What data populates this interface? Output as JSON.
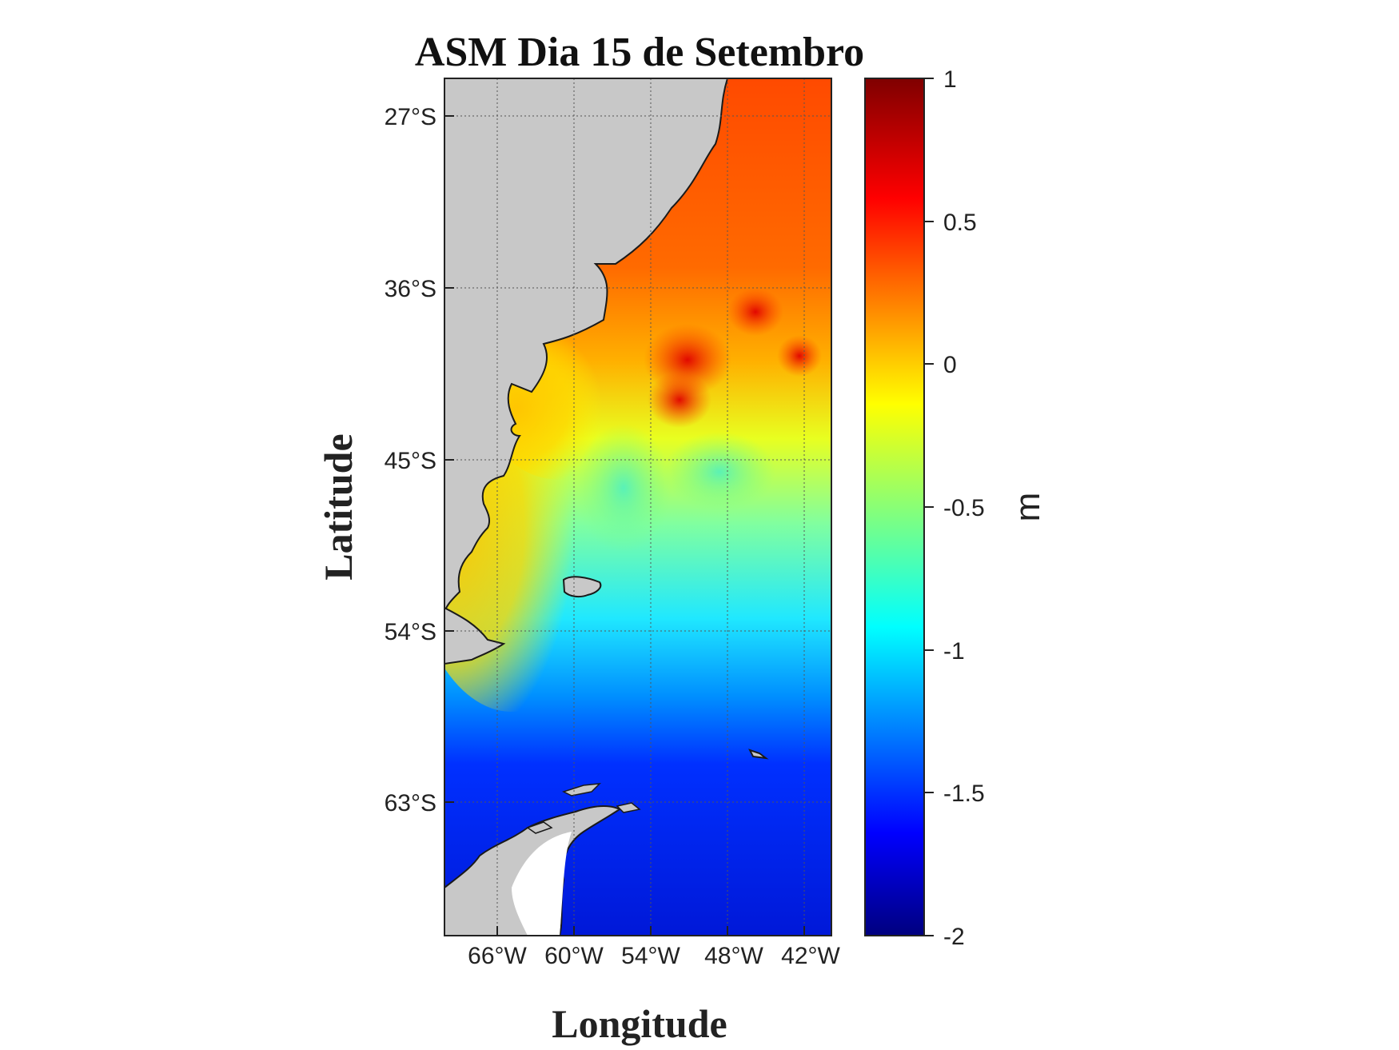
{
  "title": "ASM Dia 15 de Setembro",
  "xlabel": "Longitude",
  "ylabel": "Latitude",
  "lat_ticks": [
    "27°S",
    "36°S",
    "45°S",
    "54°S",
    "63°S"
  ],
  "lon_ticks": [
    "66°W",
    "60°W",
    "54°W",
    "48°W",
    "42°W"
  ],
  "colorbar": {
    "label": "m",
    "ticks": [
      "1",
      "0.5",
      "0",
      "-0.5",
      "-1",
      "-1.5",
      "-2"
    ],
    "range": [
      -2,
      1
    ],
    "colormap": "jet"
  },
  "colors": {
    "land": "#c8c8c8",
    "coast": "#1a1a1a",
    "grid": "#555555"
  },
  "map_extent": {
    "lon": [
      -70,
      -40
    ],
    "lat": [
      -70,
      -25
    ]
  }
}
